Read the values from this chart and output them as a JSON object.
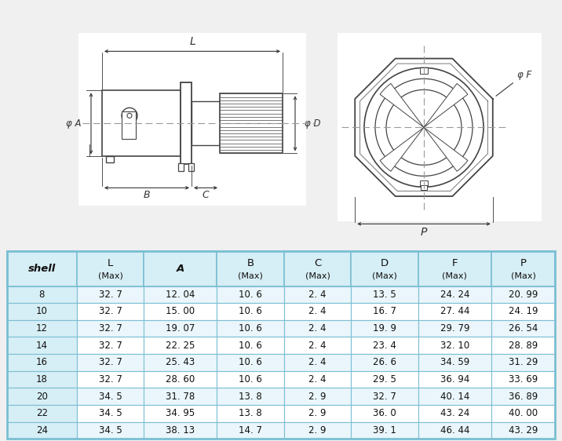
{
  "col_labels": [
    "shell",
    "L",
    "A",
    "B",
    "C",
    "D",
    "F",
    "P"
  ],
  "col_sub": [
    "",
    "(Max)",
    "",
    "(Max)",
    "(Max)",
    "(Max)",
    "(Max)",
    "(Max)"
  ],
  "rows": [
    [
      "8",
      "32. 7",
      "12. 04",
      "10. 6",
      "2. 4",
      "13. 5",
      "24. 24",
      "20. 99"
    ],
    [
      "10",
      "32. 7",
      "15. 00",
      "10. 6",
      "2. 4",
      "16. 7",
      "27. 44",
      "24. 19"
    ],
    [
      "12",
      "32. 7",
      "19. 07",
      "10. 6",
      "2. 4",
      "19. 9",
      "29. 79",
      "26. 54"
    ],
    [
      "14",
      "32. 7",
      "22. 25",
      "10. 6",
      "2. 4",
      "23. 4",
      "32. 10",
      "28. 89"
    ],
    [
      "16",
      "32. 7",
      "25. 43",
      "10. 6",
      "2. 4",
      "26. 6",
      "34. 59",
      "31. 29"
    ],
    [
      "18",
      "32. 7",
      "28. 60",
      "10. 6",
      "2. 4",
      "29. 5",
      "36. 94",
      "33. 69"
    ],
    [
      "20",
      "34. 5",
      "31. 78",
      "13. 8",
      "2. 9",
      "32. 7",
      "40. 14",
      "36. 89"
    ],
    [
      "22",
      "34. 5",
      "34. 95",
      "13. 8",
      "2. 9",
      "36. 0",
      "43. 24",
      "40. 00"
    ],
    [
      "24",
      "34. 5",
      "38. 13",
      "14. 7",
      "2. 9",
      "39. 1",
      "46. 44",
      "43. 29"
    ]
  ],
  "fig_bg": "#f0f0f0",
  "draw_bg": "#f0f0f0",
  "table_bg": "#ffffff",
  "header_bg": "#d6eef5",
  "shell_col_bg": "#d6eef5",
  "row_bg_even": "#eaf6fb",
  "row_bg_odd": "#ffffff",
  "border_color": "#7bbfd4",
  "line_color": "#444444",
  "dim_color": "#333333",
  "center_line_color": "#999999"
}
